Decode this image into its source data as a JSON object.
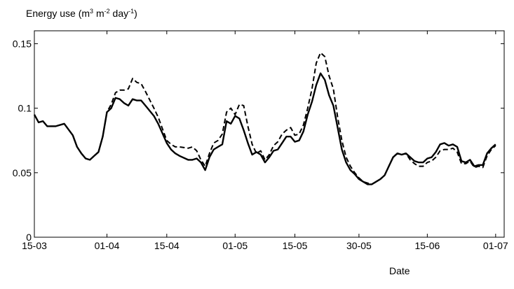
{
  "chart_data": {
    "type": "line",
    "title": "",
    "ylabel_text": "Energy use (m",
    "ylabel_sup1": "3",
    "ylabel_mid1": " m",
    "ylabel_sup2": "-2",
    "ylabel_mid2": " day",
    "ylabel_sup3": "-1",
    "ylabel_end": ")",
    "xlabel": "Date",
    "ylim": [
      0,
      0.16
    ],
    "xlim": [
      "2000-03-15",
      "2000-07-03"
    ],
    "grid": false,
    "legend": "none",
    "x_ticks": [
      {
        "date": "2000-03-15",
        "label": "15-03"
      },
      {
        "date": "2000-04-01",
        "label": "01-04"
      },
      {
        "date": "2000-04-15",
        "label": "15-04"
      },
      {
        "date": "2000-05-01",
        "label": "01-05"
      },
      {
        "date": "2000-05-15",
        "label": "15-05"
      },
      {
        "date": "2000-05-30",
        "label": "30-05"
      },
      {
        "date": "2000-06-15",
        "label": "15-06"
      },
      {
        "date": "2000-07-01",
        "label": "01-07"
      }
    ],
    "y_ticks": [
      {
        "value": 0,
        "label": "0"
      },
      {
        "value": 0.05,
        "label": "0.05"
      },
      {
        "value": 0.1,
        "label": "0.1"
      },
      {
        "value": 0.15,
        "label": "0.15"
      }
    ],
    "series": [
      {
        "style": "solid",
        "color": "#000000",
        "points": [
          [
            "2000-03-15",
            0.095
          ],
          [
            "2000-03-16",
            0.089
          ],
          [
            "2000-03-17",
            0.09
          ],
          [
            "2000-03-18",
            0.086
          ],
          [
            "2000-03-20",
            0.086
          ],
          [
            "2000-03-22",
            0.088
          ],
          [
            "2000-03-24",
            0.079
          ],
          [
            "2000-03-25",
            0.07
          ],
          [
            "2000-03-26",
            0.065
          ],
          [
            "2000-03-27",
            0.061
          ],
          [
            "2000-03-28",
            0.06
          ],
          [
            "2000-03-29",
            0.063
          ],
          [
            "2000-03-30",
            0.066
          ],
          [
            "2000-03-31",
            0.078
          ],
          [
            "2000-04-01",
            0.097
          ],
          [
            "2000-04-02",
            0.1
          ],
          [
            "2000-04-03",
            0.108
          ],
          [
            "2000-04-04",
            0.107
          ],
          [
            "2000-04-05",
            0.104
          ],
          [
            "2000-04-06",
            0.102
          ],
          [
            "2000-04-07",
            0.107
          ],
          [
            "2000-04-08",
            0.106
          ],
          [
            "2000-04-09",
            0.106
          ],
          [
            "2000-04-10",
            0.102
          ],
          [
            "2000-04-12",
            0.094
          ],
          [
            "2000-04-13",
            0.088
          ],
          [
            "2000-04-15",
            0.073
          ],
          [
            "2000-04-16",
            0.068
          ],
          [
            "2000-04-17",
            0.065
          ],
          [
            "2000-04-18",
            0.063
          ],
          [
            "2000-04-20",
            0.06
          ],
          [
            "2000-04-21",
            0.06
          ],
          [
            "2000-04-22",
            0.061
          ],
          [
            "2000-04-23",
            0.058
          ],
          [
            "2000-04-24",
            0.052
          ],
          [
            "2000-04-25",
            0.062
          ],
          [
            "2000-04-26",
            0.068
          ],
          [
            "2000-04-27",
            0.07
          ],
          [
            "2000-04-28",
            0.072
          ],
          [
            "2000-04-29",
            0.09
          ],
          [
            "2000-04-30",
            0.088
          ],
          [
            "2000-05-01",
            0.094
          ],
          [
            "2000-05-02",
            0.092
          ],
          [
            "2000-05-03",
            0.083
          ],
          [
            "2000-05-04",
            0.073
          ],
          [
            "2000-05-05",
            0.064
          ],
          [
            "2000-05-06",
            0.066
          ],
          [
            "2000-05-07",
            0.064
          ],
          [
            "2000-05-08",
            0.058
          ],
          [
            "2000-05-09",
            0.062
          ],
          [
            "2000-05-10",
            0.067
          ],
          [
            "2000-05-11",
            0.068
          ],
          [
            "2000-05-12",
            0.073
          ],
          [
            "2000-05-13",
            0.078
          ],
          [
            "2000-05-14",
            0.078
          ],
          [
            "2000-05-15",
            0.074
          ],
          [
            "2000-05-16",
            0.075
          ],
          [
            "2000-05-17",
            0.082
          ],
          [
            "2000-05-18",
            0.095
          ],
          [
            "2000-05-19",
            0.105
          ],
          [
            "2000-05-20",
            0.118
          ],
          [
            "2000-05-21",
            0.127
          ],
          [
            "2000-05-22",
            0.122
          ],
          [
            "2000-05-23",
            0.11
          ],
          [
            "2000-05-24",
            0.102
          ],
          [
            "2000-05-25",
            0.085
          ],
          [
            "2000-05-26",
            0.068
          ],
          [
            "2000-05-27",
            0.058
          ],
          [
            "2000-05-28",
            0.052
          ],
          [
            "2000-05-29",
            0.049
          ],
          [
            "2000-05-30",
            0.045
          ],
          [
            "2000-05-31",
            0.043
          ],
          [
            "2000-06-01",
            0.041
          ],
          [
            "2000-06-02",
            0.041
          ],
          [
            "2000-06-03",
            0.043
          ],
          [
            "2000-06-04",
            0.045
          ],
          [
            "2000-06-05",
            0.048
          ],
          [
            "2000-06-06",
            0.055
          ],
          [
            "2000-06-07",
            0.062
          ],
          [
            "2000-06-08",
            0.065
          ],
          [
            "2000-06-09",
            0.064
          ],
          [
            "2000-06-10",
            0.065
          ],
          [
            "2000-06-11",
            0.062
          ],
          [
            "2000-06-12",
            0.059
          ],
          [
            "2000-06-13",
            0.058
          ],
          [
            "2000-06-14",
            0.058
          ],
          [
            "2000-06-15",
            0.061
          ],
          [
            "2000-06-16",
            0.062
          ],
          [
            "2000-06-17",
            0.066
          ],
          [
            "2000-06-18",
            0.072
          ],
          [
            "2000-06-19",
            0.073
          ],
          [
            "2000-06-20",
            0.071
          ],
          [
            "2000-06-21",
            0.072
          ],
          [
            "2000-06-22",
            0.07
          ],
          [
            "2000-06-23",
            0.059
          ],
          [
            "2000-06-24",
            0.058
          ],
          [
            "2000-06-25",
            0.06
          ],
          [
            "2000-06-26",
            0.055
          ],
          [
            "2000-06-27",
            0.056
          ],
          [
            "2000-06-28",
            0.056
          ],
          [
            "2000-06-29",
            0.065
          ],
          [
            "2000-06-30",
            0.069
          ],
          [
            "2000-07-01",
            0.072
          ]
        ]
      },
      {
        "style": "dashed",
        "color": "#000000",
        "points": [
          [
            "2000-03-15",
            0.095
          ],
          [
            "2000-03-16",
            0.089
          ],
          [
            "2000-03-17",
            0.09
          ],
          [
            "2000-03-18",
            0.086
          ],
          [
            "2000-03-20",
            0.086
          ],
          [
            "2000-03-22",
            0.088
          ],
          [
            "2000-03-24",
            0.079
          ],
          [
            "2000-03-25",
            0.07
          ],
          [
            "2000-03-26",
            0.065
          ],
          [
            "2000-03-27",
            0.061
          ],
          [
            "2000-03-28",
            0.06
          ],
          [
            "2000-03-29",
            0.063
          ],
          [
            "2000-03-30",
            0.066
          ],
          [
            "2000-03-31",
            0.078
          ],
          [
            "2000-04-01",
            0.097
          ],
          [
            "2000-04-02",
            0.103
          ],
          [
            "2000-04-03",
            0.112
          ],
          [
            "2000-04-04",
            0.114
          ],
          [
            "2000-04-05",
            0.114
          ],
          [
            "2000-04-06",
            0.115
          ],
          [
            "2000-04-07",
            0.123
          ],
          [
            "2000-04-08",
            0.12
          ],
          [
            "2000-04-09",
            0.119
          ],
          [
            "2000-04-10",
            0.113
          ],
          [
            "2000-04-12",
            0.1
          ],
          [
            "2000-04-13",
            0.093
          ],
          [
            "2000-04-15",
            0.075
          ],
          [
            "2000-04-16",
            0.072
          ],
          [
            "2000-04-17",
            0.07
          ],
          [
            "2000-04-18",
            0.07
          ],
          [
            "2000-04-20",
            0.069
          ],
          [
            "2000-04-21",
            0.07
          ],
          [
            "2000-04-22",
            0.067
          ],
          [
            "2000-04-23",
            0.06
          ],
          [
            "2000-04-24",
            0.055
          ],
          [
            "2000-04-25",
            0.065
          ],
          [
            "2000-04-26",
            0.073
          ],
          [
            "2000-04-27",
            0.075
          ],
          [
            "2000-04-28",
            0.08
          ],
          [
            "2000-04-29",
            0.097
          ],
          [
            "2000-04-30",
            0.1
          ],
          [
            "2000-05-01",
            0.095
          ],
          [
            "2000-05-02",
            0.103
          ],
          [
            "2000-05-03",
            0.102
          ],
          [
            "2000-05-04",
            0.086
          ],
          [
            "2000-05-05",
            0.072
          ],
          [
            "2000-05-06",
            0.065
          ],
          [
            "2000-05-07",
            0.067
          ],
          [
            "2000-05-08",
            0.06
          ],
          [
            "2000-05-09",
            0.064
          ],
          [
            "2000-05-10",
            0.071
          ],
          [
            "2000-05-11",
            0.074
          ],
          [
            "2000-05-12",
            0.08
          ],
          [
            "2000-05-13",
            0.083
          ],
          [
            "2000-05-14",
            0.085
          ],
          [
            "2000-05-15",
            0.079
          ],
          [
            "2000-05-16",
            0.08
          ],
          [
            "2000-05-17",
            0.087
          ],
          [
            "2000-05-18",
            0.1
          ],
          [
            "2000-05-19",
            0.115
          ],
          [
            "2000-05-20",
            0.135
          ],
          [
            "2000-05-21",
            0.143
          ],
          [
            "2000-05-22",
            0.14
          ],
          [
            "2000-05-23",
            0.125
          ],
          [
            "2000-05-24",
            0.115
          ],
          [
            "2000-05-25",
            0.093
          ],
          [
            "2000-05-26",
            0.075
          ],
          [
            "2000-05-27",
            0.062
          ],
          [
            "2000-05-28",
            0.055
          ],
          [
            "2000-05-29",
            0.05
          ],
          [
            "2000-05-30",
            0.046
          ],
          [
            "2000-05-31",
            0.043
          ],
          [
            "2000-06-01",
            0.042
          ],
          [
            "2000-06-02",
            0.041
          ],
          [
            "2000-06-03",
            0.043
          ],
          [
            "2000-06-04",
            0.045
          ],
          [
            "2000-06-05",
            0.048
          ],
          [
            "2000-06-06",
            0.055
          ],
          [
            "2000-06-07",
            0.062
          ],
          [
            "2000-06-08",
            0.065
          ],
          [
            "2000-06-09",
            0.064
          ],
          [
            "2000-06-10",
            0.065
          ],
          [
            "2000-06-11",
            0.06
          ],
          [
            "2000-06-12",
            0.057
          ],
          [
            "2000-06-13",
            0.055
          ],
          [
            "2000-06-14",
            0.055
          ],
          [
            "2000-06-15",
            0.058
          ],
          [
            "2000-06-16",
            0.059
          ],
          [
            "2000-06-17",
            0.062
          ],
          [
            "2000-06-18",
            0.067
          ],
          [
            "2000-06-19",
            0.068
          ],
          [
            "2000-06-20",
            0.068
          ],
          [
            "2000-06-21",
            0.069
          ],
          [
            "2000-06-22",
            0.066
          ],
          [
            "2000-06-23",
            0.057
          ],
          [
            "2000-06-24",
            0.057
          ],
          [
            "2000-06-25",
            0.059
          ],
          [
            "2000-06-26",
            0.054
          ],
          [
            "2000-06-27",
            0.055
          ],
          [
            "2000-06-28",
            0.054
          ],
          [
            "2000-06-29",
            0.063
          ],
          [
            "2000-06-30",
            0.068
          ],
          [
            "2000-07-01",
            0.071
          ]
        ]
      }
    ]
  }
}
